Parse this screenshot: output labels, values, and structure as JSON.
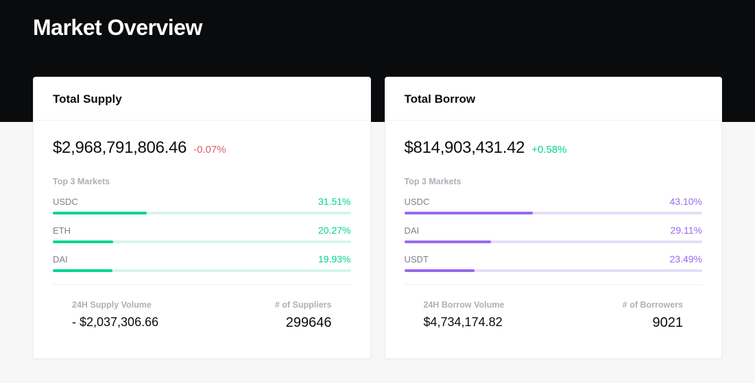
{
  "page": {
    "title": "Market Overview"
  },
  "colors": {
    "background_dark": "#0a0b0d",
    "background_light": "#f7f7f8",
    "card_bg": "#ffffff",
    "text_primary": "#0a0b0d",
    "text_muted": "#acb1b8",
    "text_market": "#7a7f87",
    "positive": "#00d395",
    "negative": "#df5f67",
    "supply_accent": "#00d395",
    "supply_track": "#d6f5ec",
    "borrow_accent": "#9669ed",
    "borrow_track": "#e6ddf8"
  },
  "supply": {
    "title": "Total Supply",
    "amount": "$2,968,791,806.46",
    "delta": "-0.07%",
    "delta_direction": "neg",
    "top_markets_label": "Top 3 Markets",
    "markets": [
      {
        "name": "USDC",
        "pct_label": "31.51%",
        "pct": 31.51
      },
      {
        "name": "ETH",
        "pct_label": "20.27%",
        "pct": 20.27
      },
      {
        "name": "DAI",
        "pct_label": "19.93%",
        "pct": 19.93
      }
    ],
    "volume_label": "24H Supply Volume",
    "volume_value": "- $2,037,306.66",
    "count_label": "# of Suppliers",
    "count_value": "299646"
  },
  "borrow": {
    "title": "Total Borrow",
    "amount": "$814,903,431.42",
    "delta": "+0.58%",
    "delta_direction": "pos",
    "top_markets_label": "Top 3 Markets",
    "markets": [
      {
        "name": "USDC",
        "pct_label": "43.10%",
        "pct": 43.1
      },
      {
        "name": "DAI",
        "pct_label": "29.11%",
        "pct": 29.11
      },
      {
        "name": "USDT",
        "pct_label": "23.49%",
        "pct": 23.49
      }
    ],
    "volume_label": "24H Borrow Volume",
    "volume_value": "$4,734,174.82",
    "count_label": "# of Borrowers",
    "count_value": "9021"
  }
}
